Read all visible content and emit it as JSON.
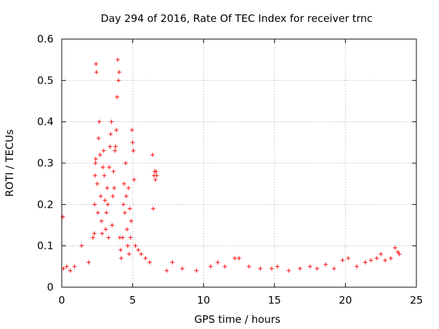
{
  "chart_data": {
    "type": "scatter",
    "title": "Day 294 of 2016, Rate Of TEC Index for receiver trnc",
    "xlabel": "GPS time / hours",
    "ylabel": "ROTI / TECUs",
    "xlim": [
      0,
      25
    ],
    "ylim": [
      0,
      0.6
    ],
    "xticks": [
      0,
      5,
      10,
      15,
      20,
      25
    ],
    "yticks": [
      0,
      0.1,
      0.2,
      0.3,
      0.4,
      0.5,
      0.6
    ],
    "xtick_labels": [
      "0",
      "5",
      "10",
      "15",
      "20",
      "25"
    ],
    "ytick_labels": [
      "0",
      "0.1",
      "0.2",
      "0.3",
      "0.4",
      "0.5",
      "0.6"
    ],
    "grid": true,
    "marker": "+",
    "color": "#ff0000",
    "series": [
      {
        "name": "ROTI",
        "x": [
          0.08,
          0.12,
          0.35,
          0.6,
          0.9,
          1.4,
          1.9,
          2.2,
          2.3,
          2.32,
          2.35,
          2.38,
          2.4,
          2.42,
          2.45,
          2.5,
          2.55,
          2.6,
          2.65,
          2.7,
          2.75,
          2.8,
          2.85,
          2.9,
          2.95,
          3.0,
          3.05,
          3.1,
          3.15,
          3.2,
          3.25,
          3.3,
          3.35,
          3.4,
          3.45,
          3.5,
          3.55,
          3.6,
          3.65,
          3.7,
          3.75,
          3.8,
          3.85,
          3.9,
          3.95,
          4.0,
          4.05,
          4.1,
          4.15,
          4.2,
          4.3,
          4.35,
          4.4,
          4.45,
          4.5,
          4.55,
          4.6,
          4.65,
          4.7,
          4.75,
          4.8,
          4.85,
          4.9,
          4.95,
          5.0,
          5.05,
          5.1,
          5.2,
          5.4,
          5.6,
          5.9,
          6.2,
          6.4,
          6.45,
          6.5,
          6.55,
          6.6,
          6.65,
          6.7,
          7.4,
          7.8,
          8.5,
          9.5,
          10.5,
          11.0,
          11.5,
          12.2,
          12.5,
          13.2,
          14.0,
          14.8,
          15.2,
          16.0,
          16.8,
          17.5,
          18.0,
          18.6,
          19.2,
          19.8,
          20.2,
          20.8,
          21.4,
          21.8,
          22.2,
          22.5,
          22.8,
          23.2,
          23.5,
          23.7,
          23.8
        ],
        "y": [
          0.17,
          0.045,
          0.05,
          0.04,
          0.05,
          0.1,
          0.06,
          0.12,
          0.13,
          0.2,
          0.27,
          0.3,
          0.31,
          0.54,
          0.52,
          0.25,
          0.18,
          0.36,
          0.4,
          0.32,
          0.22,
          0.16,
          0.13,
          0.29,
          0.33,
          0.27,
          0.21,
          0.14,
          0.18,
          0.24,
          0.2,
          0.12,
          0.29,
          0.34,
          0.37,
          0.4,
          0.15,
          0.22,
          0.28,
          0.24,
          0.33,
          0.34,
          0.38,
          0.46,
          0.55,
          0.5,
          0.52,
          0.12,
          0.09,
          0.07,
          0.12,
          0.2,
          0.25,
          0.18,
          0.3,
          0.22,
          0.14,
          0.1,
          0.24,
          0.08,
          0.19,
          0.12,
          0.16,
          0.38,
          0.35,
          0.33,
          0.26,
          0.1,
          0.09,
          0.08,
          0.07,
          0.06,
          0.32,
          0.19,
          0.27,
          0.28,
          0.26,
          0.28,
          0.27,
          0.04,
          0.06,
          0.045,
          0.04,
          0.05,
          0.06,
          0.05,
          0.07,
          0.07,
          0.05,
          0.045,
          0.045,
          0.05,
          0.04,
          0.045,
          0.05,
          0.045,
          0.055,
          0.045,
          0.065,
          0.07,
          0.05,
          0.06,
          0.065,
          0.07,
          0.08,
          0.065,
          0.07,
          0.095,
          0.085,
          0.08
        ]
      }
    ]
  }
}
